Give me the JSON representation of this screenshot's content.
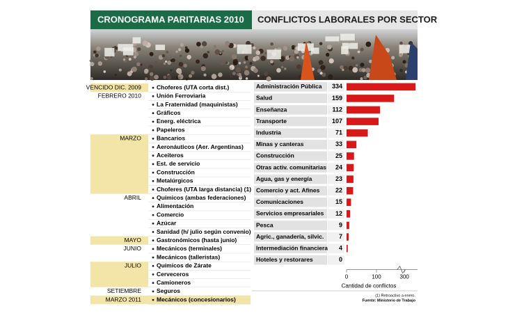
{
  "schedule": {
    "title": "CRONOGRAMA PARITARIAS 2010",
    "groups": [
      {
        "period": "VENCIDO DIC. 2009",
        "highlight": true,
        "items": [
          "Choferes (UTA corta dist.)"
        ]
      },
      {
        "period": "FEBRERO 2010",
        "highlight": false,
        "items": [
          "Unión Ferroviaria",
          "La Fraternidad  (maquinistas)",
          "Gráficos",
          "Energ. eléctrica",
          "Papeleros"
        ]
      },
      {
        "period": "MARZO",
        "highlight": true,
        "items": [
          "Bancarios",
          "Aeronáuticos (Aer. Argentinas)",
          "Aceiteros",
          "Est. de servicio",
          "Construcción",
          "Metalúrgicos",
          "Choferes (UTA larga distancia) (1)"
        ]
      },
      {
        "period": "ABRIL",
        "highlight": false,
        "items": [
          "Químicos (ambas federaciones)",
          "Alimentación",
          "Comercio",
          "Azúcar",
          "Sanidad (h/ julio según convenio)"
        ]
      },
      {
        "period": "MAYO",
        "highlight": true,
        "items": [
          "Gastronómicos (hasta junio)"
        ]
      },
      {
        "period": "JUNIO",
        "highlight": false,
        "items": [
          "Mecánicos (terminales)",
          "Mecánicos (talleristas)"
        ]
      },
      {
        "period": "JULIO",
        "highlight": true,
        "items": [
          "Químicos de Zárate",
          "Cerveceros",
          "Camioneros"
        ]
      },
      {
        "period": "SETIEMBRE",
        "highlight": false,
        "items": [
          "Seguros"
        ]
      },
      {
        "period": "MARZO 2011",
        "highlight": true,
        "items": [
          "Mecánicos (concesionarios)"
        ]
      }
    ]
  },
  "chart_data": {
    "type": "bar",
    "orientation": "horizontal",
    "title": "CONFLICTOS LABORALES POR SECTOR",
    "categories": [
      "Administración Pública",
      "Salud",
      "Enseñanza",
      "Transporte",
      "Industria",
      "Minas y canteras",
      "Construcción",
      "Otras activ. comunitarias",
      "Agua, gas y energía",
      "Comercio y act. Afines",
      "Comunicaciones",
      "Servicios empresariales",
      "Pesca",
      "Agric., ganadería, silvic.",
      "Intermediación financiera",
      "Hoteles y restorares"
    ],
    "values": [
      334,
      159,
      112,
      107,
      71,
      33,
      25,
      24,
      23,
      22,
      15,
      12,
      9,
      7,
      4,
      0
    ],
    "color": "#d7191c",
    "xlim": [
      0,
      340
    ],
    "xticks": [
      0,
      100,
      300
    ],
    "axis_break": true,
    "x_label": "Cantidad de conflictos"
  },
  "notes": [
    "(1) Retroactivo a enero.",
    "Fuente: Ministerio de Trabajo"
  ]
}
